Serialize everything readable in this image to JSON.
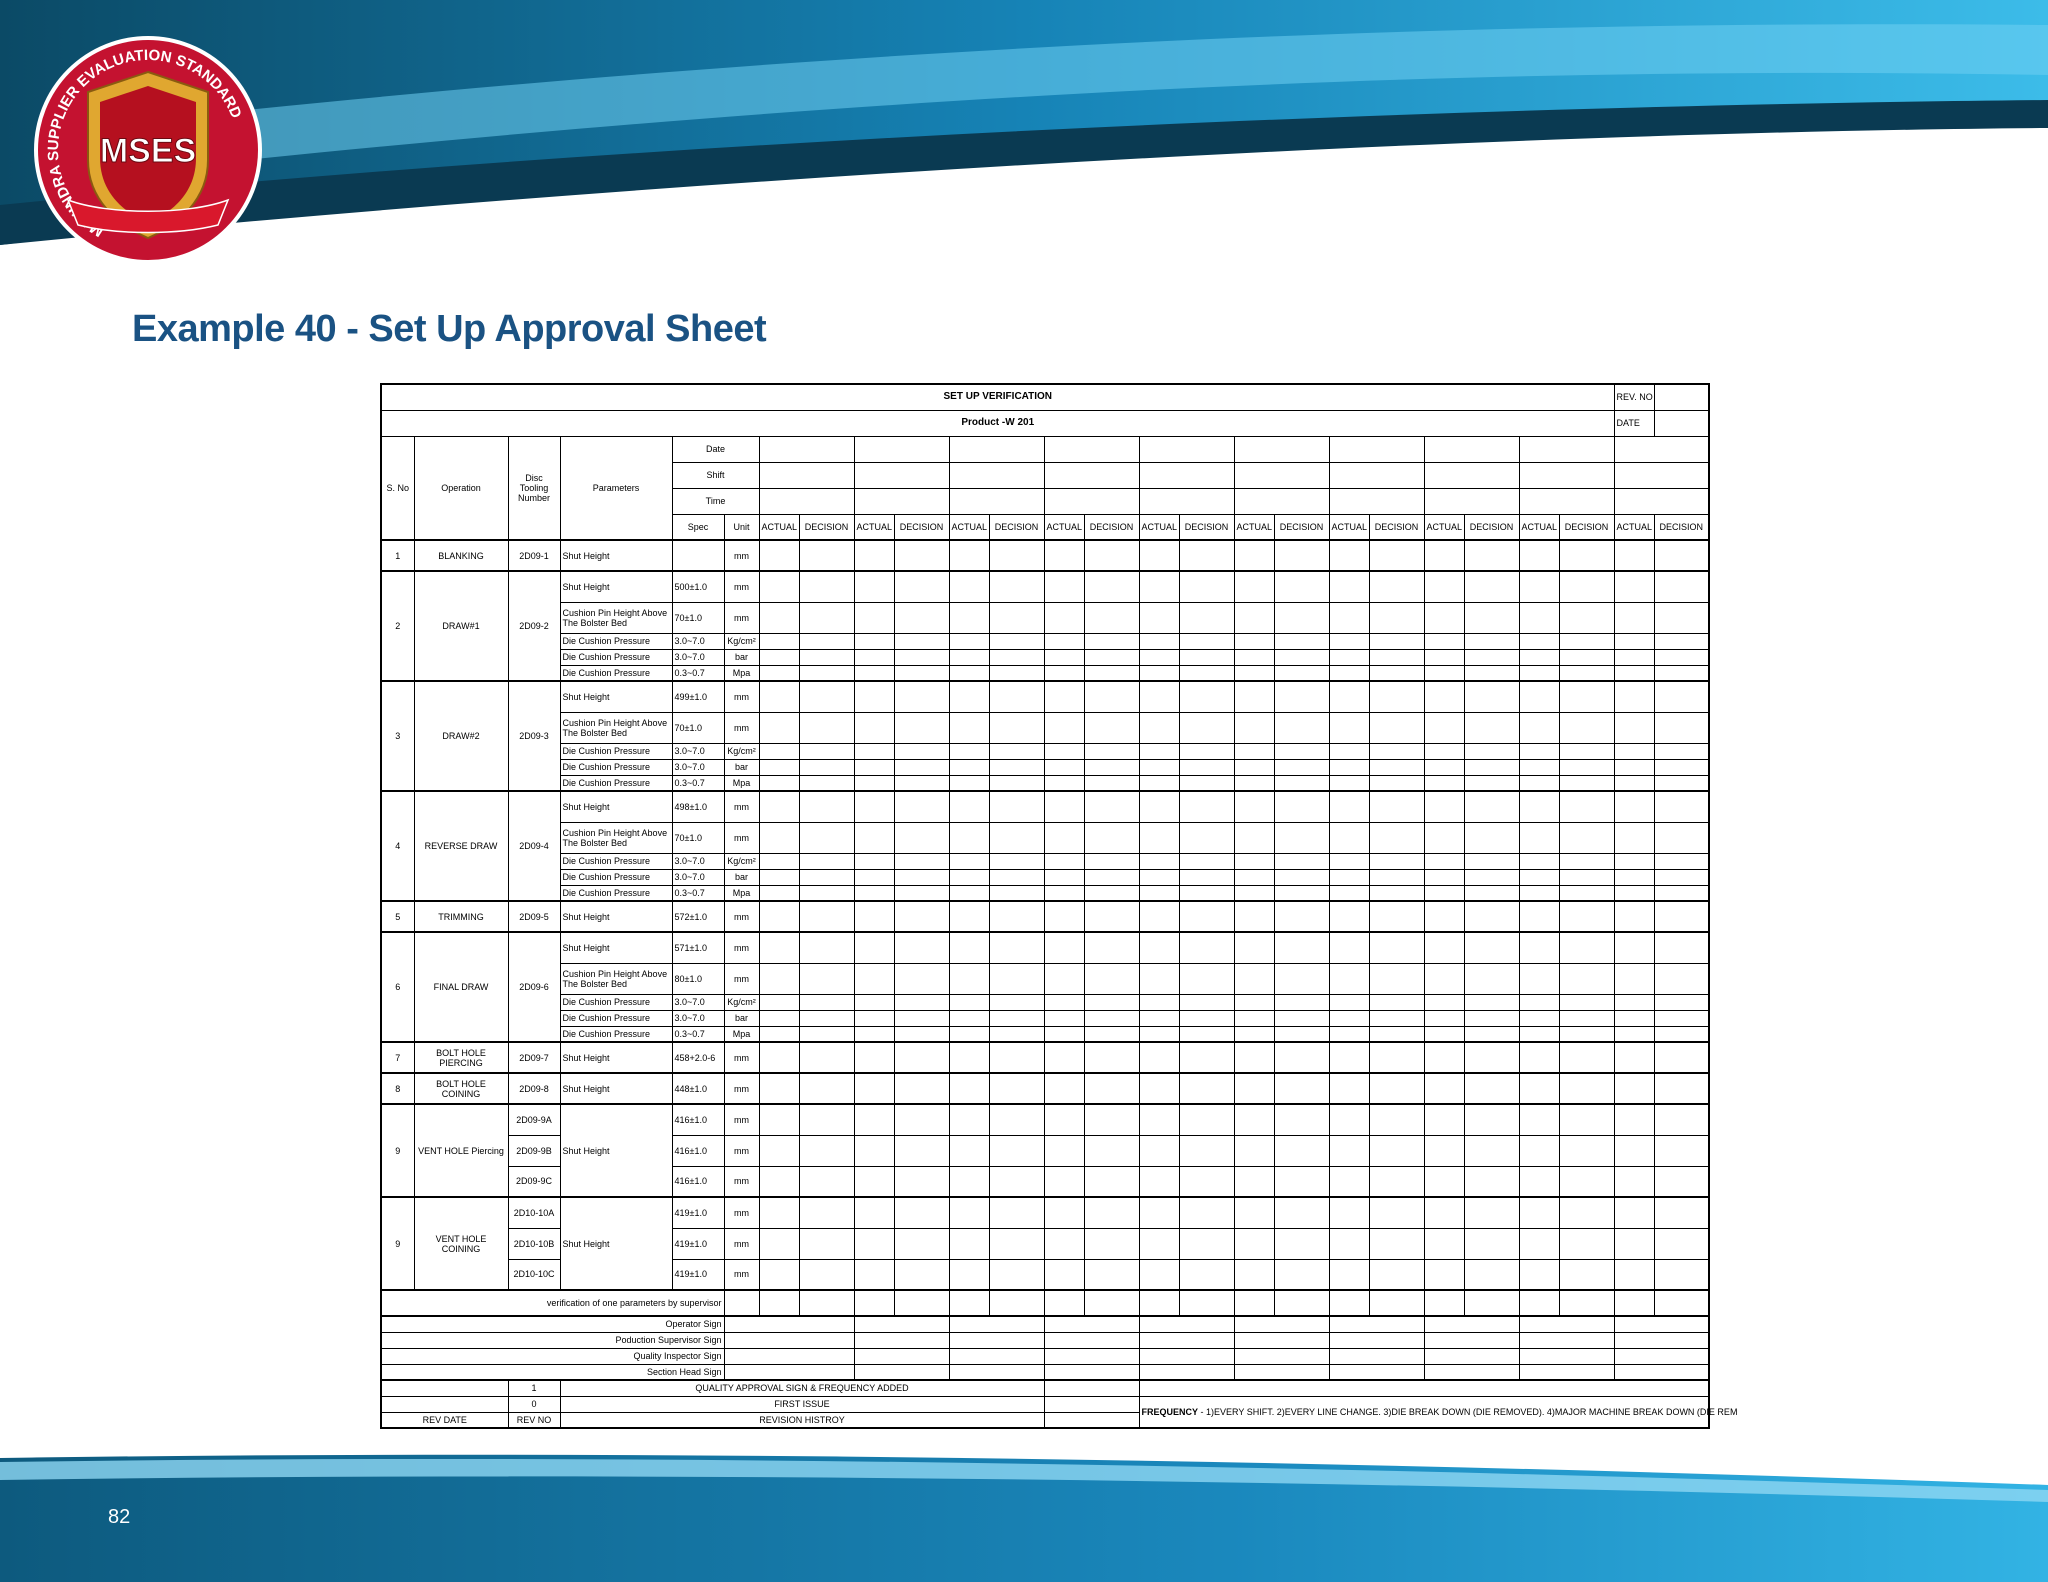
{
  "page": {
    "title": "Example 40 - Set Up Approval Sheet",
    "page_number": "82"
  },
  "logo": {
    "text": "MSES",
    "ring_text": "MAHINDRA SUPPLIER EVALUATION STANDARD"
  },
  "form": {
    "title": "SET UP VERIFICATION",
    "product": "Product -W 201",
    "rev_no_label": "REV. NO",
    "date_label": "DATE"
  },
  "columns": {
    "sno": "S. No",
    "operation": "Operation",
    "tooling": "Disc Tooling Number",
    "parameters": "Parameters",
    "date": "Date",
    "shift": "Shift",
    "time": "Time",
    "spec": "Spec",
    "unit": "Unit",
    "actual": "ACTUAL",
    "decision": "DECISION"
  },
  "operations": [
    {
      "sno": "1",
      "operation": "BLANKING",
      "rows": [
        {
          "tooling": "2D09-1",
          "parameter": "Shut Height",
          "unit": "mm"
        }
      ]
    },
    {
      "sno": "2",
      "operation": "DRAW#1",
      "rows": [
        {
          "tooling": "2D09-2",
          "parameter": "Shut Height",
          "spec": "500±1.0",
          "unit": "mm"
        },
        {
          "parameter": "Cushion Pin Height Above The Bolster Bed",
          "spec": "70±1.0",
          "unit": "mm"
        },
        {
          "parameter": "Die Cushion Pressure",
          "spec": "3.0~7.0",
          "unit": "Kg/cm²"
        },
        {
          "parameter": "Die Cushion Pressure",
          "spec": "3.0~7.0",
          "unit": "bar"
        },
        {
          "parameter": "Die Cushion Pressure",
          "spec": "0.3~0.7",
          "unit": "Mpa"
        }
      ]
    },
    {
      "sno": "3",
      "operation": "DRAW#2",
      "rows": [
        {
          "tooling": "2D09-3",
          "parameter": "Shut Height",
          "spec": "499±1.0",
          "unit": "mm"
        },
        {
          "parameter": "Cushion Pin Height Above The Bolster Bed",
          "spec": "70±1.0",
          "unit": "mm"
        },
        {
          "parameter": "Die Cushion Pressure",
          "spec": "3.0~7.0",
          "unit": "Kg/cm²"
        },
        {
          "parameter": "Die Cushion Pressure",
          "spec": "3.0~7.0",
          "unit": "bar"
        },
        {
          "parameter": "Die Cushion Pressure",
          "spec": "0.3~0.7",
          "unit": "Mpa"
        }
      ]
    },
    {
      "sno": "4",
      "operation": "REVERSE DRAW",
      "rows": [
        {
          "tooling": "2D09-4",
          "parameter": "Shut Height",
          "spec": "498±1.0",
          "unit": "mm"
        },
        {
          "parameter": "Cushion Pin Height Above The Bolster Bed",
          "spec": "70±1.0",
          "unit": "mm"
        },
        {
          "parameter": "Die Cushion Pressure",
          "spec": "3.0~7.0",
          "unit": "Kg/cm²"
        },
        {
          "parameter": "Die Cushion Pressure",
          "spec": "3.0~7.0",
          "unit": "bar"
        },
        {
          "parameter": "Die Cushion Pressure",
          "spec": "0.3~0.7",
          "unit": "Mpa"
        }
      ]
    },
    {
      "sno": "5",
      "operation": "TRIMMING",
      "rows": [
        {
          "tooling": "2D09-5",
          "parameter": "Shut Height",
          "spec": "572±1.0",
          "unit": "mm"
        }
      ]
    },
    {
      "sno": "6",
      "operation": "FINAL DRAW",
      "rows": [
        {
          "tooling": "2D09-6",
          "parameter": "Shut Height",
          "spec": "571±1.0",
          "unit": "mm"
        },
        {
          "parameter": "Cushion Pin Height Above The Bolster Bed",
          "spec": "80±1.0",
          "unit": "mm"
        },
        {
          "parameter": "Die Cushion Pressure",
          "spec": "3.0~7.0",
          "unit": "Kg/cm²"
        },
        {
          "parameter": "Die Cushion Pressure",
          "spec": "3.0~7.0",
          "unit": "bar"
        },
        {
          "parameter": "Die Cushion Pressure",
          "spec": "0.3~0.7",
          "unit": "Mpa"
        }
      ]
    },
    {
      "sno": "7",
      "operation": "BOLT HOLE PIERCING",
      "rows": [
        {
          "tooling": "2D09-7",
          "parameter": "Shut Height",
          "spec": "458+2.0-6",
          "unit": "mm"
        }
      ]
    },
    {
      "sno": "8",
      "operation": "BOLT HOLE COINING",
      "rows": [
        {
          "tooling": "2D09-8",
          "parameter": "Shut Height",
          "spec": "448±1.0",
          "unit": "mm"
        }
      ]
    },
    {
      "sno": "9",
      "operation": "VENT HOLE Piercing",
      "rows": [
        {
          "tooling": "2D09-9A",
          "parameter": "Shut Height",
          "spec": "416±1.0",
          "unit": "mm"
        },
        {
          "tooling": "2D09-9B",
          "spec": "416±1.0",
          "unit": "mm"
        },
        {
          "tooling": "2D09-9C",
          "spec": "416±1.0",
          "unit": "mm"
        }
      ]
    },
    {
      "sno": "9",
      "operation": "VENT HOLE COINING",
      "rows": [
        {
          "tooling": "2D10-10A",
          "parameter": "Shut Height",
          "spec": "419±1.0",
          "unit": "mm"
        },
        {
          "tooling": "2D10-10B",
          "spec": "419±1.0",
          "unit": "mm"
        },
        {
          "tooling": "2D10-10C",
          "spec": "419±1.0",
          "unit": "mm"
        }
      ]
    }
  ],
  "verification_note": "verification of one parameters by supervisor",
  "signatures": [
    "Operator  Sign",
    "Poduction Supervisor Sign",
    "Quality Inspector Sign",
    "Section Head Sign"
  ],
  "revision_history": {
    "rows": [
      {
        "rev_no": "1",
        "description": "QUALITY APPROVAL SIGN  & FREQUENCY ADDED"
      },
      {
        "rev_no": "0",
        "description": "FIRST ISSUE"
      }
    ],
    "rev_date_label": "REV DATE",
    "rev_no_label": "REV NO",
    "history_label": "REVISION HISTROY"
  },
  "frequency": {
    "label": "FREQUENCY",
    "text": " - 1)EVERY SHIFT. 2)EVERY LINE CHANGE. 3)DIE BREAK DOWN (DIE REMOVED). 4)MAJOR MACHINE BREAK DOWN (DIE REM"
  }
}
